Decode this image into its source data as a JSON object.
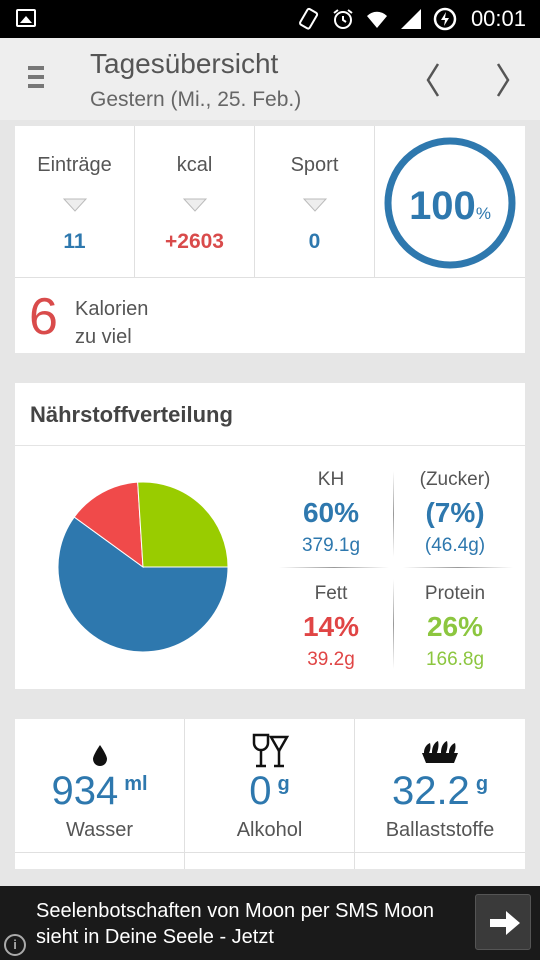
{
  "status_bar": {
    "time": "00:01"
  },
  "header": {
    "title": "Tagesübersicht",
    "subtitle": "Gestern (Mi., 25. Feb.)"
  },
  "summary": {
    "stats": [
      {
        "label": "Einträge",
        "value": "11",
        "color": "#2e78ae"
      },
      {
        "label": "kcal",
        "value": "+2603",
        "color": "#d94b4b"
      },
      {
        "label": "Sport",
        "value": "0",
        "color": "#2e78ae"
      }
    ],
    "ring": {
      "value": "100",
      "unit": "%",
      "fraction": 1.0,
      "color": "#2e78ae"
    },
    "calories": {
      "number": "6",
      "line1": "Kalorien",
      "line2": "zu viel"
    }
  },
  "nutrients": {
    "title": "Nährstoffverteilung",
    "cells": [
      {
        "name": "KH",
        "pct": "60%",
        "grams": "379.1g",
        "color": "#2e78ae"
      },
      {
        "name": "(Zucker)",
        "pct": "(7%)",
        "grams": "(46.4g)",
        "color": "#2e78ae"
      },
      {
        "name": "Fett",
        "pct": "14%",
        "grams": "39.2g",
        "color": "#e04545"
      },
      {
        "name": "Protein",
        "pct": "26%",
        "grams": "166.8g",
        "color": "#8cc63f"
      }
    ],
    "pie": [
      {
        "label": "KH",
        "percent": 60,
        "color": "#2e78ae"
      },
      {
        "label": "Fett",
        "percent": 14,
        "color": "#f04a4a"
      },
      {
        "label": "Protein",
        "percent": 26,
        "color": "#99cc00"
      }
    ]
  },
  "extras": [
    {
      "label": "Wasser",
      "value": "934",
      "unit": "ml",
      "icon": "water-drop-icon"
    },
    {
      "label": "Alkohol",
      "value": "0",
      "unit": "g",
      "icon": "wine-glasses-icon"
    },
    {
      "label": "Ballaststoffe",
      "value": "32.2",
      "unit": "g",
      "icon": "grain-icon"
    }
  ],
  "ad": {
    "text": "Seelenbotschaften von Moon per SMS Moon sieht in Deine Seele - Jetzt",
    "info": "i"
  }
}
